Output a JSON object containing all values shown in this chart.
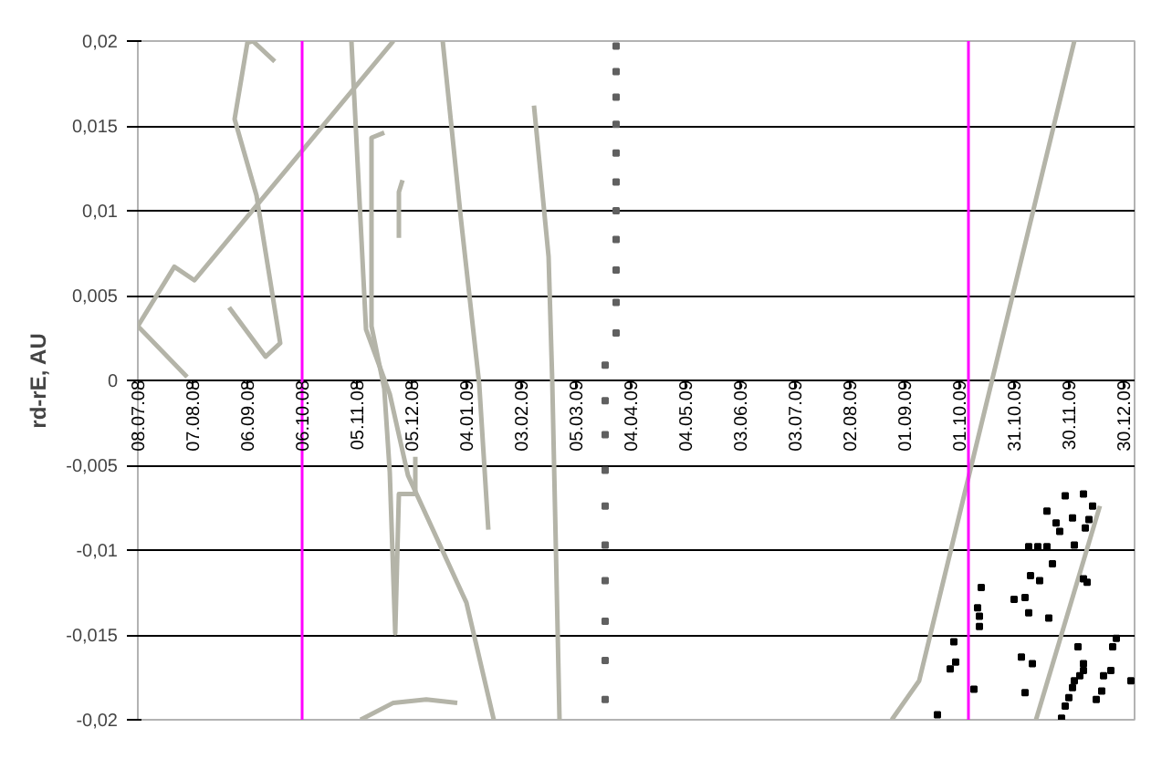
{
  "chart_data": {
    "type": "line",
    "ylabel": "rd-rE, AU",
    "xlim": [
      "2008-07-08",
      "2010-01-05"
    ],
    "xticks": [
      {
        "value": "2008-07-08",
        "label": "08.07.08"
      },
      {
        "value": "2008-08-07",
        "label": "07.08.08"
      },
      {
        "value": "2008-09-06",
        "label": "06.09.08"
      },
      {
        "value": "2008-10-06",
        "label": "06.10.08"
      },
      {
        "value": "2008-11-05",
        "label": "05.11.08"
      },
      {
        "value": "2008-12-05",
        "label": "05.12.08"
      },
      {
        "value": "2009-01-04",
        "label": "04.01.09"
      },
      {
        "value": "2009-02-03",
        "label": "03.02.09"
      },
      {
        "value": "2009-03-05",
        "label": "05.03.09"
      },
      {
        "value": "2009-04-04",
        "label": "04.04.09"
      },
      {
        "value": "2009-05-04",
        "label": "04.05.09"
      },
      {
        "value": "2009-06-03",
        "label": "03.06.09"
      },
      {
        "value": "2009-07-03",
        "label": "03.07.09"
      },
      {
        "value": "2009-08-02",
        "label": "02.08.09"
      },
      {
        "value": "2009-09-01",
        "label": "01.09.09"
      },
      {
        "value": "2009-10-01",
        "label": "01.10.09"
      },
      {
        "value": "2009-10-31",
        "label": "31.10.09"
      },
      {
        "value": "2009-11-30",
        "label": "30.11.09"
      },
      {
        "value": "2009-12-30",
        "label": "30.12.09"
      }
    ],
    "ylim": [
      -0.02,
      0.02
    ],
    "yticks": [
      {
        "value": 0.02,
        "label": "0,02"
      },
      {
        "value": 0.015,
        "label": "0,015"
      },
      {
        "value": 0.01,
        "label": "0,01"
      },
      {
        "value": 0.005,
        "label": "0,005"
      },
      0,
      {
        "value": -0.005,
        "label": "-0,005"
      },
      {
        "value": -0.01,
        "label": "-0,01"
      },
      {
        "value": -0.015,
        "label": "-0,015"
      },
      {
        "value": -0.02,
        "label": "-0,02"
      }
    ],
    "grid": "y",
    "ref_lines": [
      {
        "axis": "x",
        "value": "2008-10-06",
        "color": "#ff00ff"
      },
      {
        "axis": "x",
        "value": "2009-10-06",
        "color": "#ff00ff"
      }
    ],
    "series": [
      {
        "color": "#b4b4a8",
        "x": [
          "2008-08-04",
          "2008-07-08",
          "2008-07-28",
          "2008-08-08",
          "2008-11-25"
        ],
        "values": [
          0.0002,
          0.0032,
          0.0067,
          0.0059,
          0.02
        ]
      },
      {
        "color": "#b4b4a8",
        "x": [
          "2008-08-27",
          "2008-09-16",
          "2008-09-24",
          "2008-09-11",
          "2008-08-30",
          "2008-09-06",
          "2008-09-09",
          "2008-09-21"
        ],
        "values": [
          0.0043,
          0.0014,
          0.0022,
          0.0109,
          0.0154,
          0.0199,
          0.02,
          0.0188
        ]
      },
      {
        "color": "#b4b4a8",
        "x": [
          "2008-11-02",
          "2008-11-10",
          "2008-11-23",
          "2008-12-03",
          "2009-01-04",
          "2009-01-19"
        ],
        "values": [
          0.02,
          0.003,
          -0.0008,
          -0.0056,
          -0.0131,
          -0.02
        ]
      },
      {
        "color": "#b4b4a8",
        "x": [
          "2008-11-20",
          "2008-11-13",
          "2008-11-13",
          "2008-11-20",
          "2008-11-23",
          "2008-11-26",
          "2008-11-28",
          "2008-12-07",
          "2008-12-07"
        ],
        "values": [
          0.0146,
          0.0143,
          0.0032,
          -0.0005,
          -0.0054,
          -0.0149,
          -0.0067,
          -0.0067,
          -0.0045
        ]
      },
      {
        "color": "#b4b4a8",
        "x": [
          "2008-11-30",
          "2008-11-28",
          "2008-11-28"
        ],
        "values": [
          0.0118,
          0.0111,
          0.0084
        ]
      },
      {
        "color": "#b4b4a8",
        "x": [
          "2008-12-22",
          "2009-01-01",
          "2009-01-11",
          "2009-01-16"
        ],
        "values": [
          0.02,
          0.0095,
          -0.0002,
          -0.0088
        ]
      },
      {
        "color": "#b4b4a8",
        "x": [
          "2008-11-07",
          "2008-11-25",
          "2008-12-13",
          "2008-12-30"
        ],
        "values": [
          -0.02,
          -0.019,
          -0.0188,
          -0.019
        ]
      },
      {
        "color": "#b4b4a8",
        "x": [
          "2009-02-10",
          "2009-02-18",
          "2009-02-20",
          "2009-02-22",
          "2009-02-24"
        ],
        "values": [
          0.0162,
          0.0073,
          0.0,
          -0.0099,
          -0.02
        ]
      },
      {
        "color": "#b4b4a8",
        "x": [
          "2009-08-25",
          "2009-09-09",
          "2009-12-03"
        ],
        "values": [
          -0.02,
          -0.0177,
          0.02
        ]
      },
      {
        "color": "#b4b4a8",
        "x": [
          "2009-11-12",
          "2009-12-17"
        ],
        "values": [
          -0.02,
          -0.0074
        ]
      },
      {
        "type": "scatter",
        "color": "#606060",
        "x": [
          "2009-03-27",
          "2009-03-27",
          "2009-03-27",
          "2009-03-27",
          "2009-03-27",
          "2009-03-27",
          "2009-03-27",
          "2009-03-27",
          "2009-03-27",
          "2009-03-27",
          "2009-03-27",
          "2009-03-21",
          "2009-03-21",
          "2009-03-21",
          "2009-03-21",
          "2009-03-21",
          "2009-03-21",
          "2009-03-21",
          "2009-03-21",
          "2009-03-21",
          "2009-03-21"
        ],
        "values": [
          0.0197,
          0.0182,
          0.0167,
          0.0151,
          0.0134,
          0.0117,
          0.01,
          0.0083,
          0.0065,
          0.0046,
          0.0028,
          0.0009,
          -0.0012,
          -0.0032,
          -0.0053,
          -0.0074,
          -0.0097,
          -0.0118,
          -0.0142,
          -0.0165,
          -0.0188
        ]
      },
      {
        "type": "scatter",
        "color": "#000000",
        "x": [
          "2009-11-28",
          "2009-12-08",
          "2009-12-13",
          "2009-11-18",
          "2009-12-02",
          "2009-12-11",
          "2009-11-23",
          "2009-11-25",
          "2009-12-09",
          "2009-11-08",
          "2009-11-13",
          "2009-11-18",
          "2009-12-03",
          "2009-11-21",
          "2009-11-09",
          "2009-11-14",
          "2009-12-08",
          "2009-12-10",
          "2009-10-13",
          "2009-10-31",
          "2009-11-06",
          "2009-10-11",
          "2009-10-12",
          "2009-10-12",
          "2009-11-08",
          "2009-11-19",
          "2009-11-04",
          "2009-11-10",
          "2009-12-05",
          "2009-12-08",
          "2009-12-08",
          "2009-12-06",
          "2009-12-03",
          "2009-12-02",
          "2009-11-30",
          "2009-11-28",
          "2009-11-26",
          "2009-12-19",
          "2009-12-23",
          "2009-12-15",
          "2009-12-18",
          "2009-12-26",
          "2009-12-24",
          "2010-01-03",
          "2009-10-09",
          "2009-11-06",
          "2009-09-19",
          "2009-09-26",
          "2009-09-29",
          "2009-09-28"
        ],
        "values": [
          -0.0068,
          -0.0067,
          -0.0074,
          -0.0077,
          -0.0081,
          -0.0082,
          -0.0084,
          -0.0089,
          -0.0087,
          -0.0098,
          -0.0098,
          -0.0098,
          -0.0097,
          -0.0108,
          -0.0115,
          -0.0118,
          -0.0117,
          -0.0119,
          -0.0122,
          -0.0129,
          -0.0128,
          -0.0134,
          -0.0139,
          -0.0145,
          -0.0137,
          -0.014,
          -0.0163,
          -0.0167,
          -0.0157,
          -0.0167,
          -0.0171,
          -0.0174,
          -0.0177,
          -0.0181,
          -0.0187,
          -0.0192,
          -0.0199,
          -0.0174,
          -0.0171,
          -0.0188,
          -0.0183,
          -0.0152,
          -0.0157,
          -0.0177,
          -0.0182,
          -0.0184,
          -0.0197,
          -0.017,
          -0.0166,
          -0.0154
        ]
      }
    ]
  }
}
